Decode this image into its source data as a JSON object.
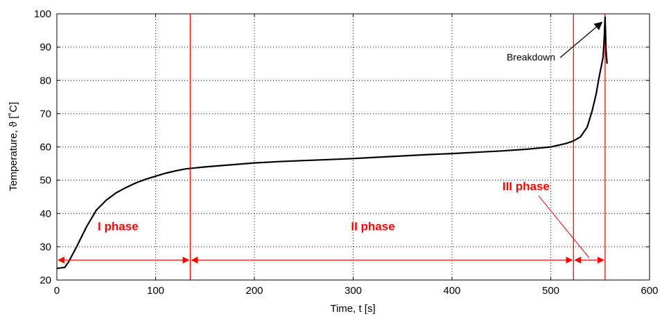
{
  "chart_data": {
    "type": "line",
    "title": "",
    "xlabel": "Time, t [s]",
    "ylabel": "Temperature, ϑ [˚C]",
    "xlim": [
      0,
      600
    ],
    "ylim": [
      20,
      100
    ],
    "xticks": [
      "0",
      "100",
      "200",
      "300",
      "400",
      "500",
      "600"
    ],
    "yticks": [
      "20",
      "30",
      "40",
      "50",
      "60",
      "70",
      "80",
      "90",
      "100"
    ],
    "grid": true,
    "line_color": "#000000",
    "accent_color": "#ff0000",
    "series": [
      {
        "points": [
          [
            0,
            23.5
          ],
          [
            8,
            23.8
          ],
          [
            12,
            25.5
          ],
          [
            20,
            30
          ],
          [
            30,
            36
          ],
          [
            40,
            41
          ],
          [
            50,
            44
          ],
          [
            60,
            46.2
          ],
          [
            70,
            47.8
          ],
          [
            80,
            49.2
          ],
          [
            90,
            50.3
          ],
          [
            100,
            51.2
          ],
          [
            110,
            52.1
          ],
          [
            120,
            52.8
          ],
          [
            130,
            53.4
          ],
          [
            140,
            53.7
          ],
          [
            150,
            54
          ],
          [
            175,
            54.6
          ],
          [
            200,
            55.2
          ],
          [
            225,
            55.6
          ],
          [
            250,
            55.9
          ],
          [
            275,
            56.2
          ],
          [
            300,
            56.5
          ],
          [
            325,
            56.9
          ],
          [
            350,
            57.3
          ],
          [
            375,
            57.7
          ],
          [
            400,
            58
          ],
          [
            425,
            58.4
          ],
          [
            450,
            58.8
          ],
          [
            475,
            59.3
          ],
          [
            500,
            60
          ],
          [
            515,
            61
          ],
          [
            523,
            61.8
          ],
          [
            530,
            63
          ],
          [
            537,
            66
          ],
          [
            542,
            71
          ],
          [
            546,
            76
          ],
          [
            549,
            81
          ],
          [
            551,
            84
          ],
          [
            553,
            87
          ],
          [
            554,
            92
          ],
          [
            555,
            99
          ],
          [
            556,
            89
          ],
          [
            557,
            85
          ]
        ]
      }
    ],
    "phase_boundaries": [
      135,
      523,
      555
    ],
    "phases": [
      {
        "label": "I phase",
        "start": 0,
        "end": 135,
        "label_x": 62,
        "label_y": 35
      },
      {
        "label": "II phase",
        "start": 135,
        "end": 523,
        "label_x": 320,
        "label_y": 35
      },
      {
        "label": "III phase",
        "start": 523,
        "end": 555,
        "label_x": 475,
        "label_y": 47
      }
    ],
    "arrow_y": 26,
    "annotations": [
      {
        "text": "Breakdown",
        "text_x": 480,
        "text_y": 86,
        "target_x": 552,
        "target_y": 97.5
      }
    ]
  }
}
